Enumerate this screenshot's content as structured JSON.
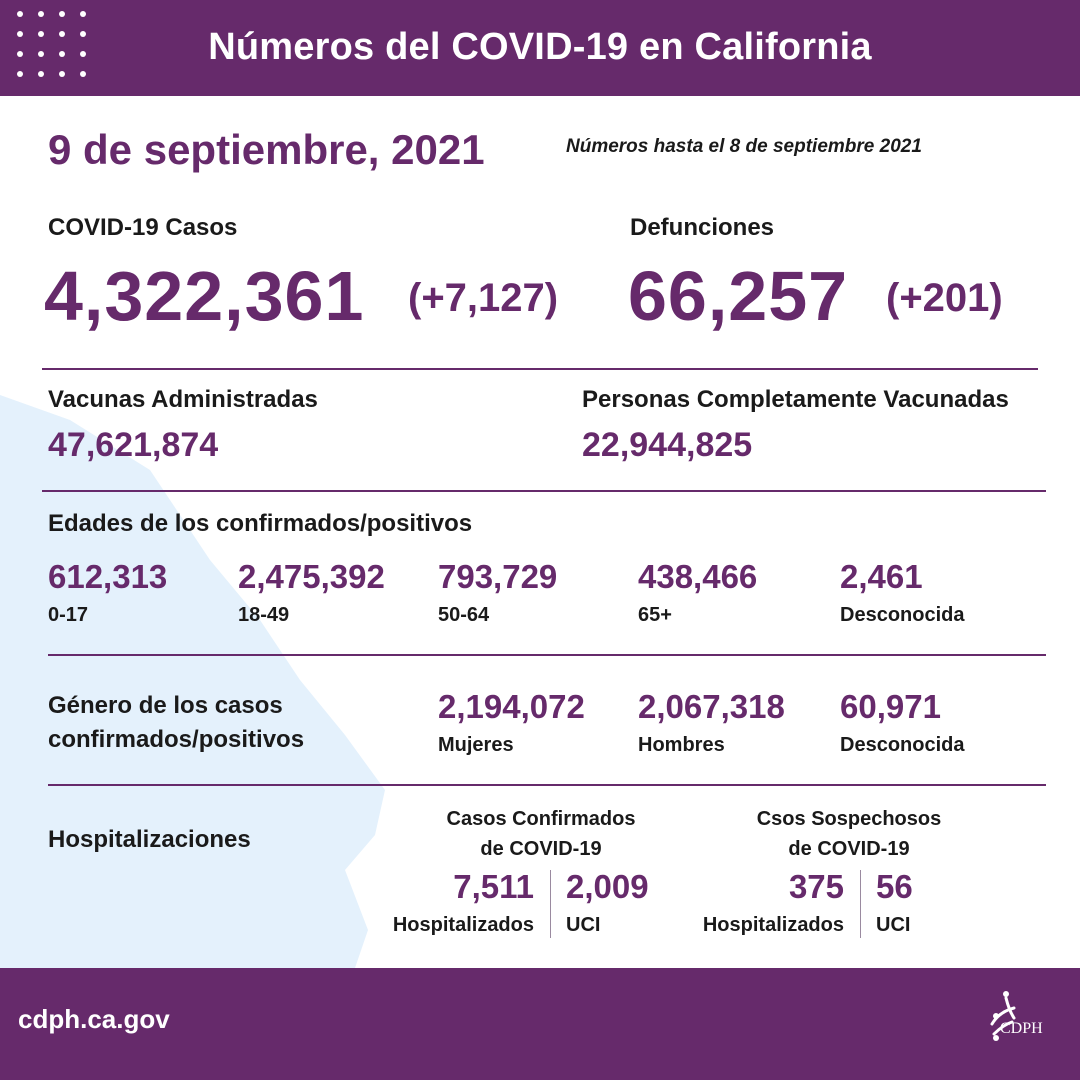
{
  "header": {
    "title": "Números del COVID-19 en California"
  },
  "date": "9 de septiembre, 2021",
  "as_of": "Números hasta el 8 de septiembre 2021",
  "cases": {
    "label": "COVID-19 Casos",
    "value": "4,322,361",
    "delta": "(+7,127)"
  },
  "deaths": {
    "label": "Defunciones",
    "value": "66,257",
    "delta": "(+201)"
  },
  "vaccines": {
    "label": "Vacunas Administradas",
    "value": "47,621,874"
  },
  "fully_vaccinated": {
    "label": "Personas Completamente Vacunadas",
    "value": "22,944,825"
  },
  "ages": {
    "label": "Edades de los confirmados/positivos",
    "items": [
      {
        "value": "612,313",
        "label": "0-17"
      },
      {
        "value": "2,475,392",
        "label": "18-49"
      },
      {
        "value": "793,729",
        "label": "50-64"
      },
      {
        "value": "438,466",
        "label": "65+"
      },
      {
        "value": "2,461",
        "label": "Desconocida"
      }
    ]
  },
  "gender": {
    "label_line1": "Género de los casos",
    "label_line2": "confirmados/positivos",
    "items": [
      {
        "value": "2,194,072",
        "label": "Mujeres"
      },
      {
        "value": "2,067,318",
        "label": "Hombres"
      },
      {
        "value": "60,971",
        "label": "Desconocida"
      }
    ]
  },
  "hospital": {
    "label": "Hospitalizaciones",
    "confirmed": {
      "title_line1": "Casos Confirmados",
      "title_line2": "de COVID-19",
      "hospitalized": {
        "value": "7,511",
        "label": "Hospitalizados"
      },
      "icu": {
        "value": "2,009",
        "label": "UCI"
      }
    },
    "suspected": {
      "title_line1": "Csos Sospechosos",
      "title_line2": "de COVID-19",
      "hospitalized": {
        "value": "375",
        "label": "Hospitalizados"
      },
      "icu": {
        "value": "56",
        "label": "UCI"
      }
    }
  },
  "footer": {
    "url": "cdph.ca.gov",
    "logo_text": "CDPH"
  },
  "colors": {
    "brand": "#662a6b",
    "map": "#e4f1fc",
    "text": "#1a1a1a"
  }
}
